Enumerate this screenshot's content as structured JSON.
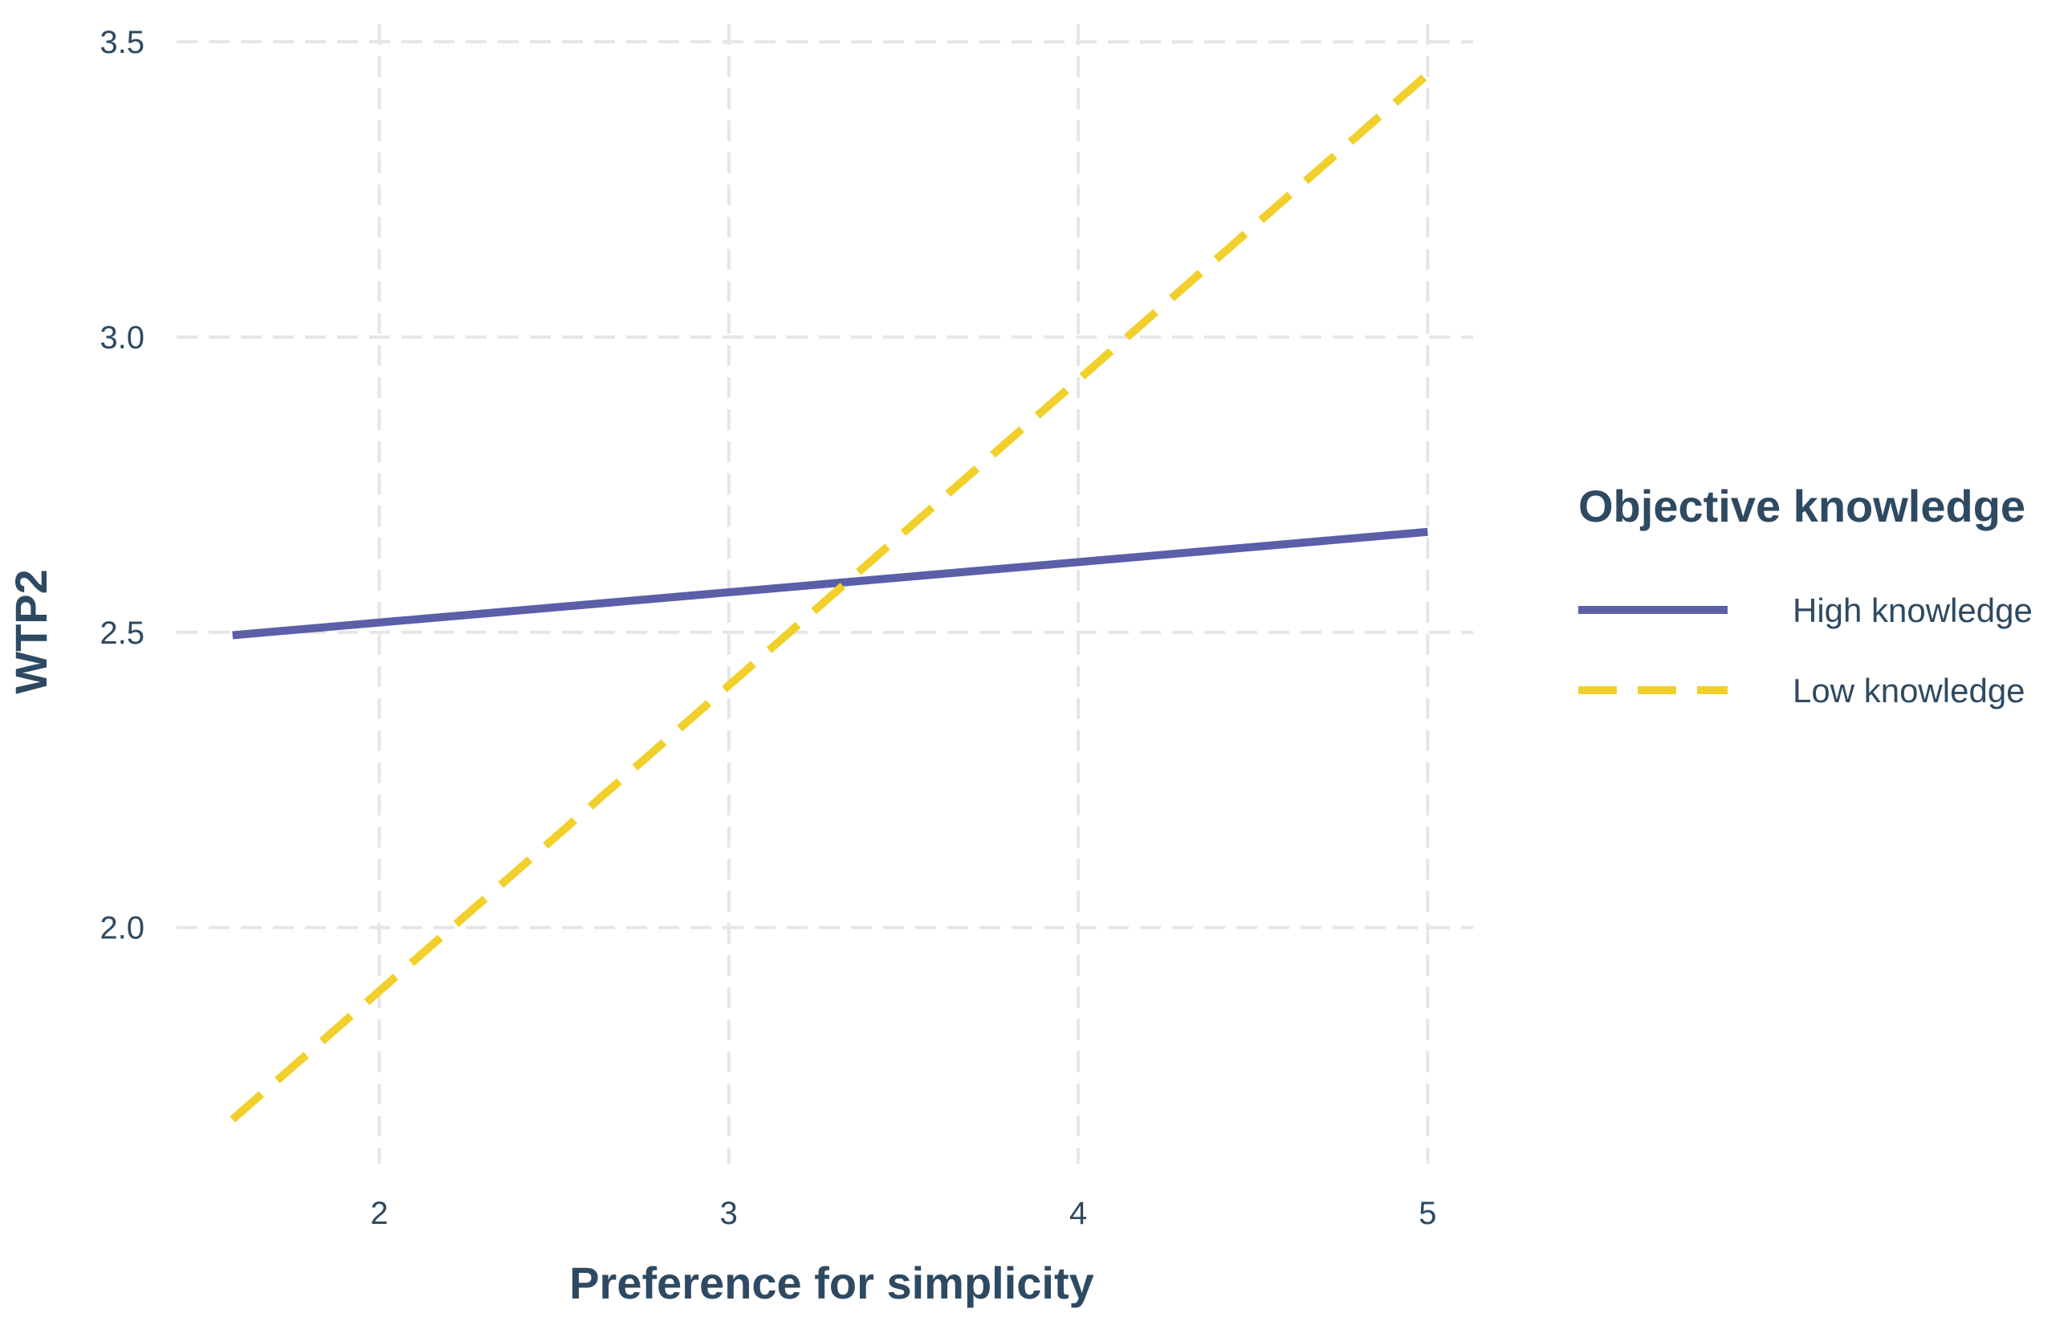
{
  "colors": {
    "text": "#2e4a62",
    "grid": "#e6e6e6",
    "high": "#5b5fa8",
    "low": "#f2d02b",
    "background": "#ffffff"
  },
  "chart_data": {
    "type": "line",
    "title": "",
    "xlabel": "Preference for simplicity",
    "ylabel": "WTP2",
    "xlim": [
      1.42,
      5.13
    ],
    "ylim": [
      1.6,
      3.53
    ],
    "x_ticks": [
      2,
      3,
      4,
      5
    ],
    "y_ticks": [
      2.0,
      2.5,
      3.0,
      3.5
    ],
    "x_tick_labels": [
      "2",
      "3",
      "4",
      "5"
    ],
    "y_tick_labels": [
      "2.0",
      "2.5",
      "3.0",
      "3.5"
    ],
    "grid": true,
    "grid_style": "dashed",
    "legend": {
      "title": "Objective knowledge",
      "placement": "right"
    },
    "series": [
      {
        "name": "High knowledge",
        "line_style": "solid",
        "color": "#5b5fa8",
        "x": [
          1.58,
          5.0
        ],
        "y": [
          2.495,
          2.67
        ]
      },
      {
        "name": "Low knowledge",
        "line_style": "dashed",
        "color": "#f2d02b",
        "x": [
          1.58,
          5.0
        ],
        "y": [
          1.675,
          3.445
        ]
      }
    ]
  }
}
